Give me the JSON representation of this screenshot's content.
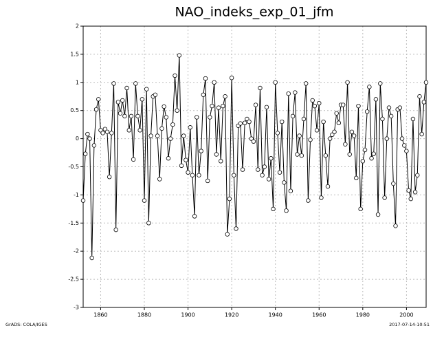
{
  "chart_data": {
    "type": "line",
    "title": "NAO_indeks_exp_01_jfm",
    "footer_left": "GrADS: COLA/IGES",
    "footer_right": "2017-07-14-10:51",
    "color": "#000000",
    "grid": true,
    "xlim": [
      1852,
      2009
    ],
    "xticks": [
      1860,
      1880,
      1900,
      1920,
      1940,
      1960,
      1980,
      2000
    ],
    "ylim": [
      -3,
      2
    ],
    "yticks": [
      -3,
      -2.5,
      -2,
      -1.5,
      -1,
      -0.5,
      0,
      0.5,
      1,
      1.5,
      2
    ],
    "x": [
      1852,
      1853,
      1854,
      1855,
      1856,
      1857,
      1858,
      1859,
      1860,
      1861,
      1862,
      1863,
      1864,
      1865,
      1866,
      1867,
      1868,
      1869,
      1870,
      1871,
      1872,
      1873,
      1874,
      1875,
      1876,
      1877,
      1878,
      1879,
      1880,
      1881,
      1882,
      1883,
      1884,
      1885,
      1886,
      1887,
      1888,
      1889,
      1890,
      1891,
      1892,
      1893,
      1894,
      1895,
      1896,
      1897,
      1898,
      1899,
      1900,
      1901,
      1902,
      1903,
      1904,
      1905,
      1906,
      1907,
      1908,
      1909,
      1910,
      1911,
      1912,
      1913,
      1914,
      1915,
      1916,
      1917,
      1918,
      1919,
      1920,
      1921,
      1922,
      1923,
      1924,
      1925,
      1926,
      1927,
      1928,
      1929,
      1930,
      1931,
      1932,
      1933,
      1934,
      1935,
      1936,
      1937,
      1938,
      1939,
      1940,
      1941,
      1942,
      1943,
      1944,
      1945,
      1946,
      1947,
      1948,
      1949,
      1950,
      1951,
      1952,
      1953,
      1954,
      1955,
      1956,
      1957,
      1958,
      1959,
      1960,
      1961,
      1962,
      1963,
      1964,
      1965,
      1966,
      1967,
      1968,
      1969,
      1970,
      1971,
      1972,
      1973,
      1974,
      1975,
      1976,
      1977,
      1978,
      1979,
      1980,
      1981,
      1982,
      1983,
      1984,
      1985,
      1986,
      1987,
      1988,
      1989,
      1990,
      1991,
      1992,
      1993,
      1994,
      1995,
      1996,
      1997,
      1998,
      1999,
      2000,
      2001,
      2002,
      2003,
      2004,
      2005,
      2006,
      2007,
      2008,
      2009
    ],
    "values": [
      -1.1,
      -0.27,
      0.08,
      0.0,
      -2.12,
      -0.12,
      0.52,
      0.7,
      0.15,
      0.1,
      0.17,
      0.12,
      -0.68,
      0.1,
      0.98,
      -1.62,
      0.65,
      0.45,
      0.68,
      0.4,
      0.9,
      0.15,
      0.4,
      -0.37,
      0.98,
      0.4,
      0.15,
      0.7,
      -1.1,
      0.88,
      -1.5,
      0.05,
      0.75,
      0.78,
      0.05,
      -0.72,
      0.18,
      0.57,
      0.38,
      -0.35,
      0.0,
      0.25,
      1.12,
      0.5,
      1.48,
      -0.48,
      0.05,
      -0.38,
      -0.6,
      0.2,
      -0.65,
      -1.38,
      0.38,
      -0.65,
      -0.22,
      0.78,
      1.07,
      -0.75,
      0.38,
      0.58,
      1.0,
      -0.28,
      0.55,
      -0.4,
      0.58,
      0.75,
      -1.7,
      -1.07,
      1.08,
      -0.65,
      -1.6,
      0.23,
      0.27,
      -0.55,
      0.28,
      0.35,
      0.3,
      0.0,
      -0.05,
      0.6,
      -0.55,
      0.9,
      -0.65,
      -0.5,
      0.56,
      -0.72,
      -0.35,
      -1.25,
      1.0,
      0.1,
      -0.6,
      0.3,
      -0.78,
      -1.28,
      0.8,
      -0.93,
      0.4,
      0.82,
      -0.28,
      0.05,
      -0.3,
      0.35,
      0.98,
      -1.1,
      -0.02,
      0.68,
      0.58,
      0.15,
      0.63,
      -1.05,
      0.3,
      -0.3,
      -0.85,
      0.0,
      0.07,
      0.12,
      0.45,
      0.28,
      0.6,
      0.6,
      -0.1,
      1.0,
      -0.28,
      0.12,
      0.05,
      -0.7,
      0.58,
      -1.25,
      -0.4,
      -0.2,
      0.48,
      0.92,
      -0.35,
      -0.27,
      0.7,
      -1.35,
      0.98,
      0.35,
      -1.05,
      0.0,
      0.55,
      0.4,
      -0.8,
      -1.55,
      0.52,
      0.55,
      0.0,
      -0.12,
      -0.22,
      -0.92,
      -1.07,
      0.35,
      -0.95,
      -0.65,
      0.75,
      0.08,
      0.65,
      1.0
    ]
  }
}
